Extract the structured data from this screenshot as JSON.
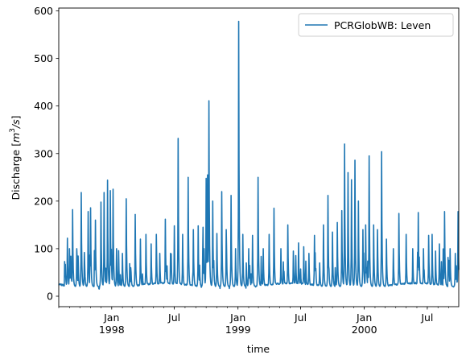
{
  "chart_data": {
    "type": "line",
    "title": "",
    "xlabel": "time",
    "ylabel_prefix": "Discharge [",
    "ylabel_unit_base": "m",
    "ylabel_unit_exp": "3",
    "ylabel_unit_rest": "/s",
    "ylabel_suffix": "]",
    "xlim": [
      "1997-08-01",
      "2000-09-30"
    ],
    "ylim": [
      -22,
      606
    ],
    "yticks": [
      0,
      100,
      200,
      300,
      400,
      500,
      600
    ],
    "major_xticks": [
      {
        "date": "1998-01-01",
        "label": "Jan",
        "sublabel": "1998"
      },
      {
        "date": "1998-07-01",
        "label": "Jul",
        "sublabel": ""
      },
      {
        "date": "1999-01-01",
        "label": "Jan",
        "sublabel": "1999"
      },
      {
        "date": "1999-07-01",
        "label": "Jul",
        "sublabel": ""
      },
      {
        "date": "2000-01-01",
        "label": "Jan",
        "sublabel": "2000"
      },
      {
        "date": "2000-07-01",
        "label": "Jul",
        "sublabel": ""
      }
    ],
    "grid": false,
    "legend_position": "top-right",
    "series": [
      {
        "name": "PCRGlobWB: Leven",
        "color": "#1f77b4",
        "peaks": [
          [
            "1997-08-05",
            26
          ],
          [
            "1997-08-20",
            67
          ],
          [
            "1997-08-26",
            122
          ],
          [
            "1997-09-01",
            100
          ],
          [
            "1997-09-10",
            182
          ],
          [
            "1997-09-22",
            100
          ],
          [
            "1997-10-05",
            218
          ],
          [
            "1997-10-14",
            92
          ],
          [
            "1997-10-25",
            178
          ],
          [
            "1997-11-01",
            186
          ],
          [
            "1997-11-15",
            160
          ],
          [
            "1997-12-01",
            198
          ],
          [
            "1997-12-10",
            218
          ],
          [
            "1997-12-20",
            244
          ],
          [
            "1997-12-28",
            222
          ],
          [
            "1998-01-05",
            225
          ],
          [
            "1998-01-15",
            100
          ],
          [
            "1998-02-01",
            90
          ],
          [
            "1998-02-12",
            205
          ],
          [
            "1998-02-25",
            60
          ],
          [
            "1998-03-10",
            172
          ],
          [
            "1998-03-25",
            120
          ],
          [
            "1998-04-10",
            130
          ],
          [
            "1998-04-25",
            110
          ],
          [
            "1998-05-10",
            130
          ],
          [
            "1998-05-20",
            90
          ],
          [
            "1998-06-05",
            162
          ],
          [
            "1998-06-20",
            90
          ],
          [
            "1998-07-01",
            148
          ],
          [
            "1998-07-12",
            332
          ],
          [
            "1998-07-25",
            130
          ],
          [
            "1998-08-10",
            250
          ],
          [
            "1998-08-25",
            140
          ],
          [
            "1998-09-08",
            148
          ],
          [
            "1998-09-22",
            145
          ],
          [
            "1998-10-01",
            248
          ],
          [
            "1998-10-05",
            255
          ],
          [
            "1998-10-09",
            411
          ],
          [
            "1998-10-20",
            200
          ],
          [
            "1998-11-01",
            132
          ],
          [
            "1998-11-15",
            220
          ],
          [
            "1998-11-28",
            140
          ],
          [
            "1998-12-12",
            212
          ],
          [
            "1998-12-25",
            100
          ],
          [
            "1999-01-03",
            578
          ],
          [
            "1999-01-15",
            130
          ],
          [
            "1999-02-01",
            100
          ],
          [
            "1999-02-12",
            128
          ],
          [
            "1999-02-28",
            250
          ],
          [
            "1999-03-15",
            100
          ],
          [
            "1999-04-01",
            130
          ],
          [
            "1999-04-15",
            185
          ],
          [
            "1999-05-05",
            100
          ],
          [
            "1999-05-25",
            150
          ],
          [
            "1999-06-10",
            95
          ],
          [
            "1999-06-25",
            112
          ],
          [
            "1999-07-10",
            104
          ],
          [
            "1999-07-25",
            90
          ],
          [
            "1999-08-10",
            128
          ],
          [
            "1999-08-25",
            70
          ],
          [
            "1999-09-05",
            150
          ],
          [
            "1999-09-18",
            212
          ],
          [
            "1999-10-01",
            135
          ],
          [
            "1999-10-15",
            155
          ],
          [
            "1999-10-28",
            180
          ],
          [
            "1999-11-05",
            320
          ],
          [
            "1999-11-15",
            260
          ],
          [
            "1999-11-25",
            245
          ],
          [
            "1999-12-05",
            286
          ],
          [
            "1999-12-15",
            200
          ],
          [
            "1999-12-28",
            140
          ],
          [
            "2000-01-05",
            150
          ],
          [
            "2000-01-15",
            295
          ],
          [
            "2000-01-28",
            150
          ],
          [
            "2000-02-08",
            140
          ],
          [
            "2000-02-20",
            304
          ],
          [
            "2000-03-05",
            120
          ],
          [
            "2000-03-25",
            100
          ],
          [
            "2000-04-10",
            174
          ],
          [
            "2000-05-01",
            130
          ],
          [
            "2000-05-20",
            100
          ],
          [
            "2000-06-05",
            176
          ],
          [
            "2000-06-20",
            100
          ],
          [
            "2000-07-05",
            128
          ],
          [
            "2000-07-15",
            130
          ],
          [
            "2000-07-25",
            95
          ],
          [
            "2000-08-05",
            110
          ],
          [
            "2000-08-20",
            178
          ],
          [
            "2000-09-05",
            100
          ],
          [
            "2000-09-20",
            90
          ],
          [
            "2000-09-28",
            178
          ]
        ]
      }
    ]
  }
}
